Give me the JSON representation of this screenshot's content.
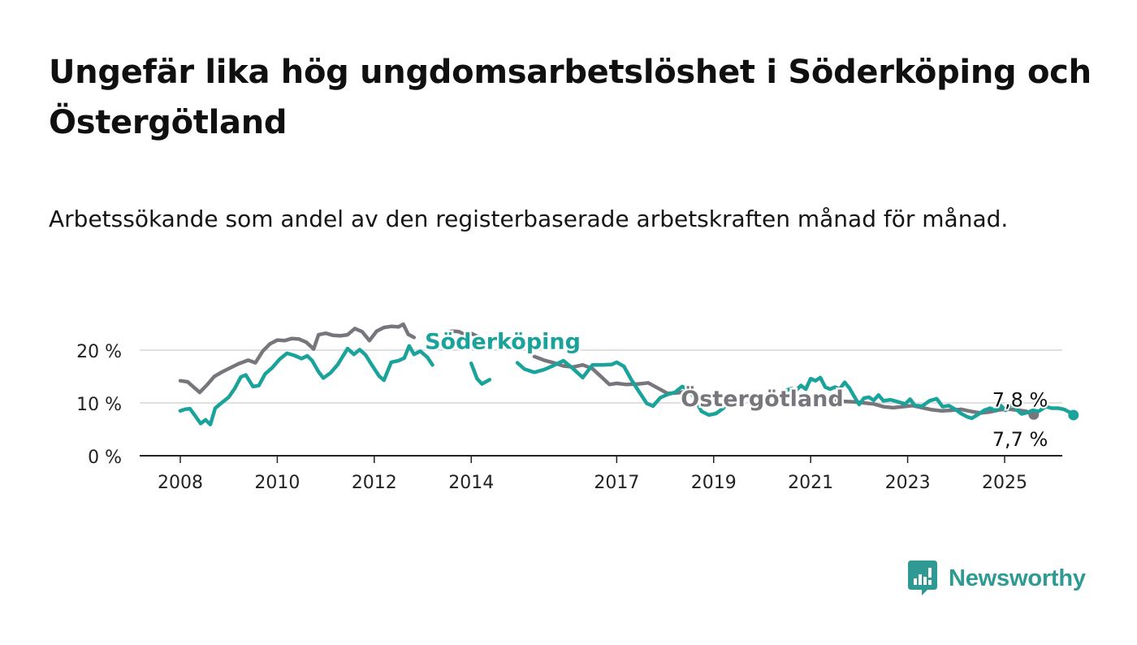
{
  "title": "Ungefär lika hög ungdomsarbetslöshet i Söderköping och Östergötland",
  "subtitle": "Arbetssökande som andel av den registerbaserade arbetskraften månad för månad.",
  "brand": {
    "name": "Newsworthy",
    "color": "#2e9a93"
  },
  "chart_data": {
    "type": "line",
    "title": "Ungefär lika hög ungdomsarbetslöshet i Söderköping och Östergötland",
    "subtitle": "Arbetssökande som andel av den registerbaserade arbetskraften månad för månad.",
    "xlabel": "",
    "ylabel": "",
    "y_ticks": [
      0,
      10,
      20
    ],
    "y_tick_labels": [
      "0 %",
      "10 %",
      "20 %"
    ],
    "x_ticks": [
      2008,
      2010,
      2012,
      2014,
      2017,
      2019,
      2021,
      2023,
      2025
    ],
    "x_tick_labels": [
      "2008",
      "2010",
      "2012",
      "2014",
      "2017",
      "2019",
      "2021",
      "2023",
      "2025"
    ],
    "xlim": [
      2007.7,
      2026.2
    ],
    "ylim": [
      0,
      25
    ],
    "grid": true,
    "series": [
      {
        "name": "Östergötland",
        "color": "#77767c",
        "end_label": "7,8 %",
        "points": [
          [
            2008.0,
            14.2
          ],
          [
            2008.15,
            14.0
          ],
          [
            2008.3,
            12.8
          ],
          [
            2008.4,
            12.0
          ],
          [
            2008.55,
            13.4
          ],
          [
            2008.7,
            15.0
          ],
          [
            2008.85,
            15.8
          ],
          [
            2009.0,
            16.5
          ],
          [
            2009.2,
            17.4
          ],
          [
            2009.4,
            18.1
          ],
          [
            2009.55,
            17.6
          ],
          [
            2009.7,
            19.8
          ],
          [
            2009.85,
            21.2
          ],
          [
            2010.0,
            21.9
          ],
          [
            2010.15,
            21.8
          ],
          [
            2010.3,
            22.2
          ],
          [
            2010.45,
            22.1
          ],
          [
            2010.6,
            21.5
          ],
          [
            2010.75,
            20.2
          ],
          [
            2010.85,
            22.9
          ],
          [
            2011.0,
            23.2
          ],
          [
            2011.15,
            22.8
          ],
          [
            2011.3,
            22.7
          ],
          [
            2011.45,
            22.9
          ],
          [
            2011.6,
            24.1
          ],
          [
            2011.75,
            23.5
          ],
          [
            2011.9,
            21.8
          ],
          [
            2012.05,
            23.6
          ],
          [
            2012.2,
            24.3
          ],
          [
            2012.35,
            24.5
          ],
          [
            2012.5,
            24.4
          ],
          [
            2012.6,
            24.9
          ],
          [
            2012.7,
            23.0
          ],
          [
            2012.82,
            22.4
          ],
          [
            2013.45,
            23.2
          ],
          [
            2013.6,
            23.6
          ],
          [
            2013.75,
            23.5
          ],
          [
            2013.85,
            23.0
          ],
          [
            2013.95,
            23.4
          ],
          [
            2014.2,
            22.3
          ],
          [
            2014.4,
            21.4
          ],
          [
            2015.3,
            18.8
          ],
          [
            2015.5,
            18.1
          ],
          [
            2015.7,
            17.6
          ],
          [
            2015.9,
            17.0
          ],
          [
            2016.1,
            16.8
          ],
          [
            2016.3,
            17.2
          ],
          [
            2016.5,
            16.5
          ],
          [
            2016.7,
            14.8
          ],
          [
            2016.85,
            13.5
          ],
          [
            2017.0,
            13.7
          ],
          [
            2017.2,
            13.5
          ],
          [
            2017.45,
            13.6
          ],
          [
            2017.65,
            13.8
          ],
          [
            2017.85,
            12.8
          ],
          [
            2018.05,
            11.8
          ],
          [
            2018.25,
            11.9
          ],
          [
            2018.45,
            12.2
          ],
          [
            2018.6,
            11.9
          ],
          [
            2021.25,
            11.3
          ],
          [
            2021.5,
            10.5
          ],
          [
            2021.7,
            10.3
          ],
          [
            2021.9,
            10.2
          ],
          [
            2022.1,
            10.0
          ],
          [
            2022.3,
            9.8
          ],
          [
            2022.5,
            9.3
          ],
          [
            2022.7,
            9.1
          ],
          [
            2022.9,
            9.3
          ],
          [
            2023.1,
            9.5
          ],
          [
            2023.3,
            9.1
          ],
          [
            2023.5,
            8.7
          ],
          [
            2023.7,
            8.5
          ],
          [
            2023.9,
            8.6
          ],
          [
            2024.1,
            8.8
          ],
          [
            2024.3,
            8.4
          ],
          [
            2024.5,
            8.1
          ],
          [
            2024.7,
            8.3
          ],
          [
            2024.9,
            8.7
          ],
          [
            2025.1,
            8.8
          ],
          [
            2025.3,
            8.6
          ],
          [
            2025.45,
            8.4
          ],
          [
            2025.6,
            7.8
          ]
        ]
      },
      {
        "name": "Söderköping",
        "color": "#1aa39b",
        "end_label": "7,7 %",
        "points": [
          [
            2008.0,
            8.5
          ],
          [
            2008.1,
            8.8
          ],
          [
            2008.2,
            8.9
          ],
          [
            2008.32,
            7.4
          ],
          [
            2008.42,
            6.1
          ],
          [
            2008.52,
            6.8
          ],
          [
            2008.62,
            5.9
          ],
          [
            2008.72,
            9.0
          ],
          [
            2008.85,
            10.0
          ],
          [
            2009.0,
            11.1
          ],
          [
            2009.12,
            12.7
          ],
          [
            2009.25,
            14.9
          ],
          [
            2009.35,
            15.3
          ],
          [
            2009.5,
            13.1
          ],
          [
            2009.62,
            13.3
          ],
          [
            2009.75,
            15.5
          ],
          [
            2009.9,
            16.7
          ],
          [
            2010.05,
            18.3
          ],
          [
            2010.2,
            19.4
          ],
          [
            2010.35,
            19.0
          ],
          [
            2010.5,
            18.4
          ],
          [
            2010.62,
            18.9
          ],
          [
            2010.72,
            18.0
          ],
          [
            2010.85,
            15.9
          ],
          [
            2010.95,
            14.7
          ],
          [
            2011.1,
            15.7
          ],
          [
            2011.25,
            17.3
          ],
          [
            2011.35,
            18.8
          ],
          [
            2011.45,
            20.3
          ],
          [
            2011.58,
            19.2
          ],
          [
            2011.7,
            20.1
          ],
          [
            2011.82,
            19.1
          ],
          [
            2011.95,
            17.2
          ],
          [
            2012.1,
            15.1
          ],
          [
            2012.2,
            14.3
          ],
          [
            2012.35,
            17.7
          ],
          [
            2012.5,
            18.0
          ],
          [
            2012.62,
            18.5
          ],
          [
            2012.72,
            20.8
          ],
          [
            2012.82,
            19.2
          ],
          [
            2012.95,
            19.8
          ],
          [
            2013.1,
            18.6
          ],
          [
            2013.2,
            17.2
          ],
          [
            2014.0,
            17.5
          ],
          [
            2014.12,
            14.6
          ],
          [
            2014.22,
            13.6
          ],
          [
            2014.38,
            14.4
          ],
          [
            2014.95,
            17.6
          ],
          [
            2015.1,
            16.4
          ],
          [
            2015.3,
            15.8
          ],
          [
            2015.5,
            16.3
          ],
          [
            2015.7,
            17.1
          ],
          [
            2015.9,
            18.0
          ],
          [
            2016.1,
            16.5
          ],
          [
            2016.3,
            14.8
          ],
          [
            2016.5,
            17.2
          ],
          [
            2016.7,
            17.2
          ],
          [
            2016.9,
            17.3
          ],
          [
            2017.0,
            17.7
          ],
          [
            2017.15,
            16.9
          ],
          [
            2017.3,
            14.4
          ],
          [
            2017.45,
            12.3
          ],
          [
            2017.62,
            9.9
          ],
          [
            2017.75,
            9.4
          ],
          [
            2017.9,
            11.0
          ],
          [
            2018.05,
            11.6
          ],
          [
            2018.2,
            12.0
          ],
          [
            2018.35,
            13.1
          ],
          [
            2018.5,
            12.4
          ],
          [
            2018.62,
            10.6
          ],
          [
            2018.75,
            8.4
          ],
          [
            2018.9,
            7.7
          ],
          [
            2019.05,
            8.0
          ],
          [
            2019.2,
            9.0
          ],
          [
            2019.32,
            10.5
          ],
          [
            2020.3,
            10.9
          ],
          [
            2020.45,
            12.2
          ],
          [
            2020.6,
            12.7
          ],
          [
            2020.7,
            12.4
          ],
          [
            2020.8,
            13.3
          ],
          [
            2020.9,
            12.6
          ],
          [
            2021.0,
            14.6
          ],
          [
            2021.1,
            14.2
          ],
          [
            2021.2,
            14.8
          ],
          [
            2021.3,
            13.0
          ],
          [
            2021.4,
            12.6
          ],
          [
            2021.5,
            13.0
          ],
          [
            2021.6,
            12.6
          ],
          [
            2021.7,
            13.9
          ],
          [
            2021.8,
            12.8
          ],
          [
            2021.9,
            11.2
          ],
          [
            2022.0,
            9.7
          ],
          [
            2022.1,
            10.9
          ],
          [
            2022.2,
            11.1
          ],
          [
            2022.3,
            10.5
          ],
          [
            2022.4,
            11.5
          ],
          [
            2022.5,
            10.4
          ],
          [
            2022.65,
            10.6
          ],
          [
            2022.8,
            10.2
          ],
          [
            2022.95,
            9.8
          ],
          [
            2023.05,
            10.7
          ],
          [
            2023.15,
            9.5
          ],
          [
            2023.3,
            9.4
          ],
          [
            2023.45,
            10.4
          ],
          [
            2023.6,
            10.8
          ],
          [
            2023.72,
            9.3
          ],
          [
            2023.85,
            9.5
          ],
          [
            2023.98,
            8.8
          ],
          [
            2024.1,
            8.0
          ],
          [
            2024.22,
            7.4
          ],
          [
            2024.32,
            7.1
          ],
          [
            2024.45,
            7.8
          ],
          [
            2024.58,
            8.6
          ],
          [
            2024.7,
            9.0
          ],
          [
            2024.82,
            8.6
          ],
          [
            2024.92,
            9.5
          ],
          [
            2025.02,
            8.6
          ],
          [
            2025.15,
            9.8
          ],
          [
            2025.25,
            8.7
          ],
          [
            2025.35,
            7.9
          ],
          [
            2025.48,
            8.2
          ],
          [
            2025.58,
            8.6
          ],
          [
            2025.7,
            8.4
          ],
          [
            2025.85,
            9.3
          ],
          [
            2025.97,
            9.0
          ],
          [
            2026.1,
            9.0
          ],
          [
            2026.22,
            8.8
          ],
          [
            2026.35,
            8.2
          ],
          [
            2026.42,
            7.7
          ]
        ]
      }
    ],
    "annotations": [
      {
        "text": "Söderköping",
        "series": "Söderköping",
        "x": 2014.65,
        "y": 20.2
      },
      {
        "text": "Östergötland",
        "series": "Östergötland",
        "x": 2020.0,
        "y": 9.4
      }
    ]
  }
}
